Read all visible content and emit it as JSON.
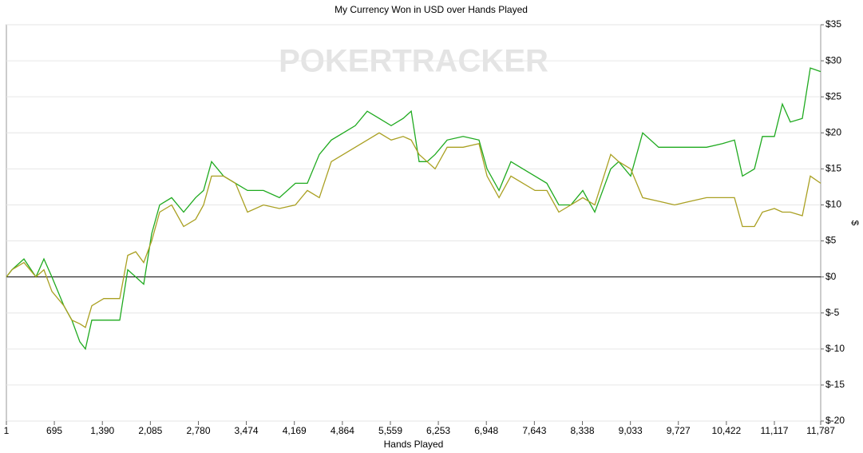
{
  "chart_data": {
    "type": "line",
    "title": "My Currency Won in USD over Hands Played",
    "watermark": "POKERTRACKER",
    "x_label": "Hands Played",
    "y_label": "$",
    "x": [
      1,
      82,
      255,
      429,
      544,
      660,
      833,
      949,
      1064,
      1145,
      1237,
      1411,
      1642,
      1757,
      1873,
      1988,
      2104,
      2219,
      2393,
      2566,
      2740,
      2855,
      2971,
      3144,
      3317,
      3491,
      3722,
      3953,
      4184,
      4357,
      4531,
      4704,
      4877,
      5051,
      5224,
      5397,
      5571,
      5744,
      5860,
      5975,
      6091,
      6206,
      6380,
      6611,
      6842,
      6958,
      7131,
      7304,
      7478,
      7651,
      7824,
      7997,
      8171,
      8344,
      8517,
      8748,
      8864,
      9037,
      9210,
      9441,
      9672,
      9903,
      10135,
      10366,
      10539,
      10655,
      10828,
      10944,
      11117,
      11232,
      11348,
      11521,
      11637,
      11787
    ],
    "series": [
      {
        "color": "#1faa1f",
        "values": [
          0,
          1,
          2.5,
          0,
          2.5,
          0,
          -4,
          -6,
          -9,
          -10,
          -6,
          -6,
          -6,
          1,
          0,
          -1,
          6,
          10,
          11,
          9,
          11,
          12,
          16,
          14,
          13,
          12,
          12,
          11,
          13,
          13,
          17,
          19,
          20,
          21,
          23,
          22,
          21,
          22,
          23,
          16,
          16,
          17,
          19,
          19.5,
          19,
          15,
          12,
          16,
          15,
          14,
          13,
          10,
          10,
          12,
          9,
          15,
          16,
          14,
          20,
          18,
          18,
          18,
          18,
          18.5,
          19,
          14,
          15,
          19.5,
          19.5,
          24,
          21.5,
          22,
          29,
          28.5
        ]
      },
      {
        "color": "#aaa022",
        "values": [
          0,
          1,
          2,
          0,
          1,
          -2,
          -4,
          -6,
          -6.5,
          -7,
          -4,
          -3,
          -3,
          3,
          3.5,
          2,
          5,
          9,
          10,
          7,
          8,
          10,
          14,
          14,
          13,
          9,
          10,
          9.5,
          10,
          12,
          11,
          16,
          17,
          18,
          19,
          20,
          19,
          19.5,
          19,
          17,
          16,
          15,
          18,
          18,
          18.5,
          14,
          11,
          14,
          13,
          12,
          12,
          9,
          10,
          11,
          10,
          17,
          16,
          15,
          11,
          10.5,
          10,
          10.5,
          11,
          11,
          11,
          7,
          7,
          9,
          9.5,
          9,
          9,
          8.5,
          14,
          13
        ]
      }
    ],
    "xlim": [
      1,
      11787
    ],
    "xticks": [
      1,
      695,
      {
        "value": 1390,
        "label": "1,390"
      },
      {
        "value": 2085,
        "label": "2,085"
      },
      {
        "value": 2780,
        "label": "2,780"
      },
      {
        "value": 3474,
        "label": "3,474"
      },
      {
        "value": 4169,
        "label": "4,169"
      },
      {
        "value": 4864,
        "label": "4,864"
      },
      {
        "value": 5559,
        "label": "5,559"
      },
      {
        "value": 6253,
        "label": "6,253"
      },
      {
        "value": 6948,
        "label": "6,948"
      },
      {
        "value": 7643,
        "label": "7,643"
      },
      {
        "value": 8338,
        "label": "8,338"
      },
      {
        "value": 9033,
        "label": "9,033"
      },
      {
        "value": 9727,
        "label": "9,727"
      },
      {
        "value": 10422,
        "label": "10,422"
      },
      {
        "value": 11117,
        "label": "11,117"
      },
      {
        "value": 11787,
        "label": "11,787"
      }
    ],
    "ylim": [
      -20,
      35
    ],
    "yticks": [
      {
        "value": -20,
        "label": "$-20"
      },
      {
        "value": -15,
        "label": "$-15"
      },
      {
        "value": -10,
        "label": "$-10"
      },
      {
        "value": -5,
        "label": "$-5"
      },
      {
        "value": 0,
        "label": "$0"
      },
      {
        "value": 5,
        "label": "$5"
      },
      {
        "value": 10,
        "label": "$10"
      },
      {
        "value": 15,
        "label": "$15"
      },
      {
        "value": 20,
        "label": "$20"
      },
      {
        "value": 25,
        "label": "$25"
      },
      {
        "value": 30,
        "label": "$30"
      },
      {
        "value": 35,
        "label": "$35"
      }
    ],
    "grid": true
  }
}
